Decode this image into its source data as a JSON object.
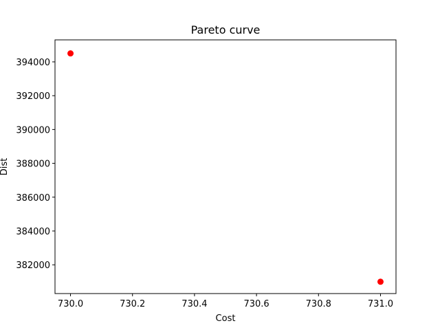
{
  "chart_data": {
    "type": "scatter",
    "title": "Pareto curve",
    "xlabel": "Cost",
    "ylabel": "Dist",
    "xlim": [
      729.95,
      731.05
    ],
    "ylim": [
      380300,
      395300
    ],
    "x_ticks": [
      730.0,
      730.2,
      730.4,
      730.6,
      730.8,
      731.0
    ],
    "x_tick_labels": [
      "730.0",
      "730.2",
      "730.4",
      "730.6",
      "730.8",
      "731.0"
    ],
    "y_ticks": [
      382000,
      384000,
      386000,
      388000,
      390000,
      392000,
      394000
    ],
    "y_tick_labels": [
      "382000",
      "384000",
      "386000",
      "388000",
      "390000",
      "392000",
      "394000"
    ],
    "grid": false,
    "series": [
      {
        "color": "#ff0000",
        "marker": "circle",
        "points": [
          {
            "x": 730.0,
            "y": 394500
          },
          {
            "x": 731.0,
            "y": 381000
          }
        ]
      }
    ]
  }
}
